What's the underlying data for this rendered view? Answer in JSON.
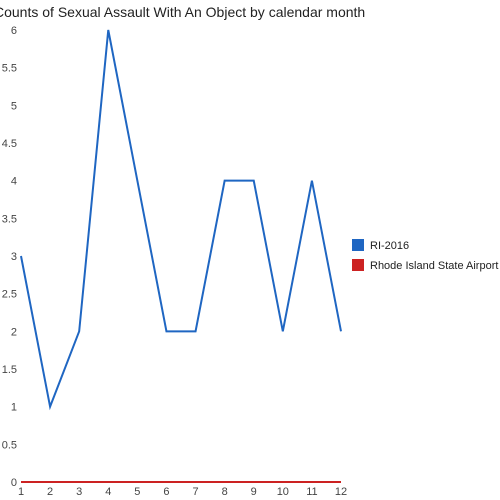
{
  "chart_data": {
    "type": "line",
    "title": "Counts of Sexual Assault With An Object by calendar month",
    "xlabel": "",
    "ylabel": "",
    "x": [
      1,
      2,
      3,
      4,
      5,
      6,
      7,
      8,
      9,
      10,
      11,
      12
    ],
    "xlim": [
      1,
      12
    ],
    "ylim": [
      0,
      6
    ],
    "x_ticks": [
      "1",
      "2",
      "3",
      "4",
      "5",
      "6",
      "7",
      "8",
      "9",
      "10",
      "11",
      "12"
    ],
    "y_ticks": [
      "0",
      "0.5",
      "1",
      "1.5",
      "2",
      "2.5",
      "3",
      "3.5",
      "4",
      "4.5",
      "5",
      "5.5",
      "6"
    ],
    "grid": false,
    "legend_position": "right",
    "series": [
      {
        "name": "RI-2016",
        "color": "#1f66c2",
        "values": [
          3,
          1,
          2,
          6,
          4,
          2,
          2,
          4,
          4,
          2,
          4,
          2
        ]
      },
      {
        "name": "Rhode Island State Airport",
        "color": "#cc2222",
        "values": [
          0,
          0,
          0,
          0,
          0,
          0,
          0,
          0,
          0,
          0,
          0,
          0
        ]
      }
    ]
  }
}
